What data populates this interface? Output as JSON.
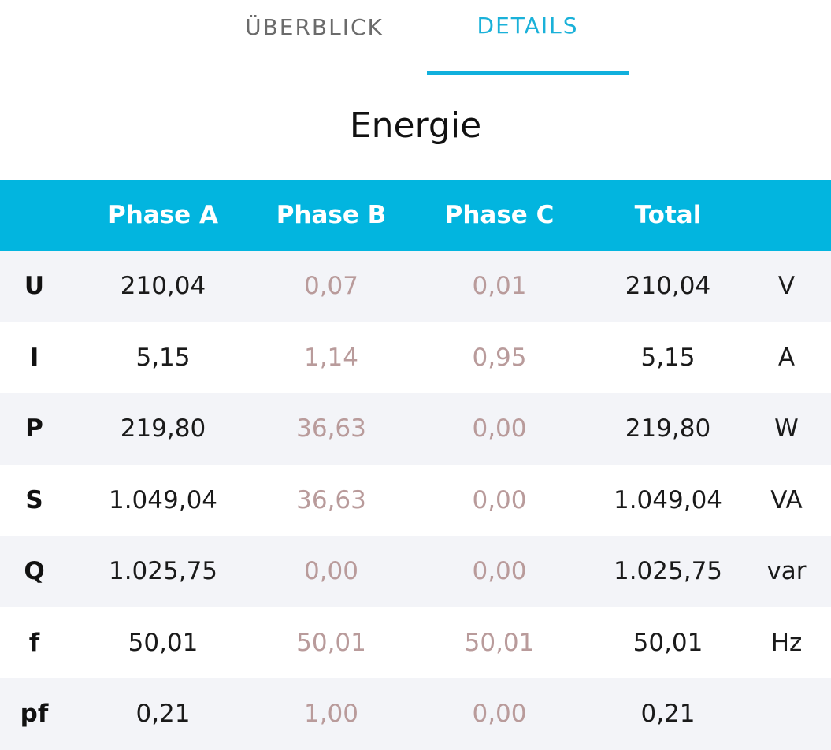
{
  "tabs": [
    {
      "label": "ÜBERBLICK",
      "active": false
    },
    {
      "label": "DETAILS",
      "active": true
    }
  ],
  "title": "Energie",
  "table": {
    "headers": [
      "",
      "Phase A",
      "Phase B",
      "Phase C",
      "Total",
      ""
    ],
    "rows": [
      {
        "label": "U",
        "a": "210,04",
        "b": "0,07",
        "c": "0,01",
        "total": "210,04",
        "unit": "V"
      },
      {
        "label": "I",
        "a": "5,15",
        "b": "1,14",
        "c": "0,95",
        "total": "5,15",
        "unit": "A"
      },
      {
        "label": "P",
        "a": "219,80",
        "b": "36,63",
        "c": "0,00",
        "total": "219,80",
        "unit": "W"
      },
      {
        "label": "S",
        "a": "1.049,04",
        "b": "36,63",
        "c": "0,00",
        "total": "1.049,04",
        "unit": "VA"
      },
      {
        "label": "Q",
        "a": "1.025,75",
        "b": "0,00",
        "c": "0,00",
        "total": "1.025,75",
        "unit": "var"
      },
      {
        "label": "f",
        "a": "50,01",
        "b": "50,01",
        "c": "50,01",
        "total": "50,01",
        "unit": "Hz"
      },
      {
        "label": "pf",
        "a": "0,21",
        "b": "1,00",
        "c": "0,00",
        "total": "0,21",
        "unit": ""
      }
    ]
  },
  "colors": {
    "accent": "#02b5df",
    "tab_active": "#1ab1d9",
    "tab_inactive": "#6b6b6b",
    "muted_value": "#b99b9b",
    "row_alt": "#f3f4f8"
  }
}
